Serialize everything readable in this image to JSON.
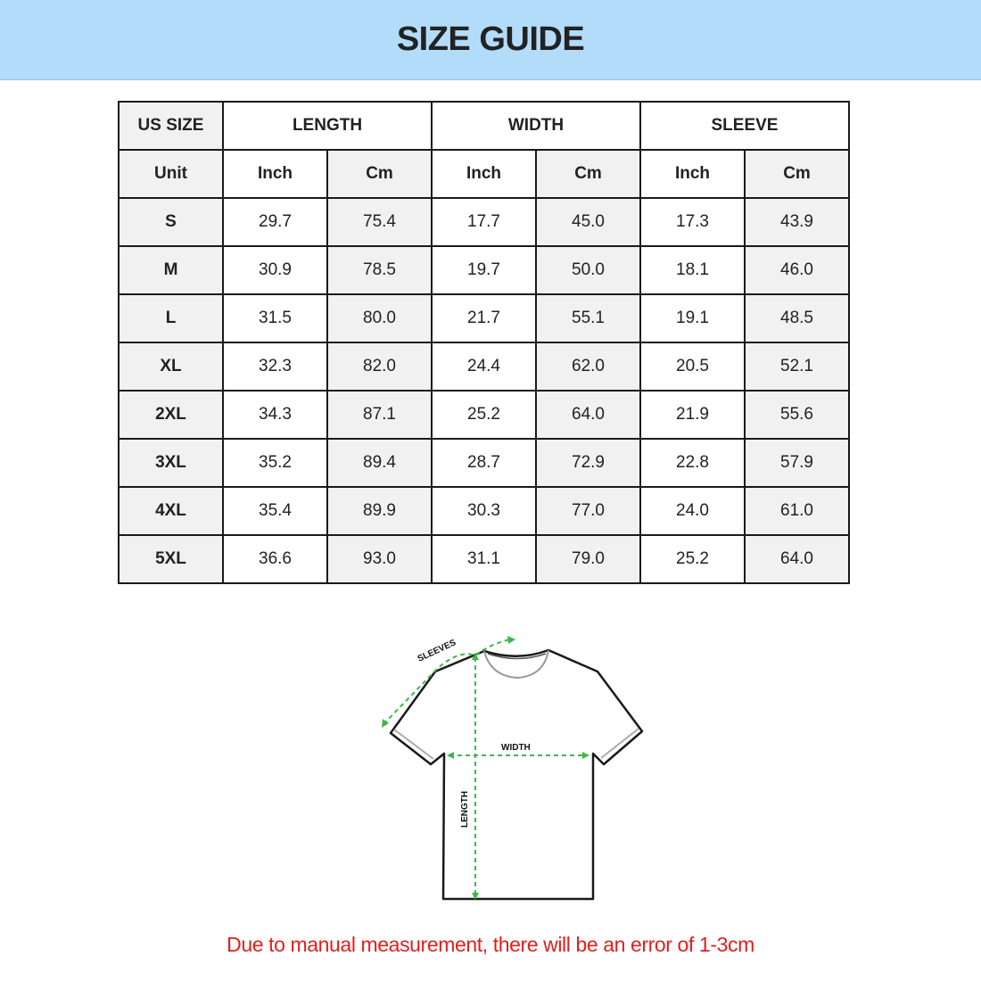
{
  "title": "SIZE GUIDE",
  "table": {
    "group_headers": [
      "US SIZE",
      "LENGTH",
      "WIDTH",
      "SLEEVE"
    ],
    "unit_row": [
      "Unit",
      "Inch",
      "Cm",
      "Inch",
      "Cm",
      "Inch",
      "Cm"
    ],
    "rows": [
      [
        "S",
        "29.7",
        "75.4",
        "17.7",
        "45.0",
        "17.3",
        "43.9"
      ],
      [
        "M",
        "30.9",
        "78.5",
        "19.7",
        "50.0",
        "18.1",
        "46.0"
      ],
      [
        "L",
        "31.5",
        "80.0",
        "21.7",
        "55.1",
        "19.1",
        "48.5"
      ],
      [
        "XL",
        "32.3",
        "82.0",
        "24.4",
        "62.0",
        "20.5",
        "52.1"
      ],
      [
        "2XL",
        "34.3",
        "87.1",
        "25.2",
        "64.0",
        "21.9",
        "55.6"
      ],
      [
        "3XL",
        "35.2",
        "89.4",
        "28.7",
        "72.9",
        "22.8",
        "57.9"
      ],
      [
        "4XL",
        "35.4",
        "89.9",
        "30.3",
        "77.0",
        "24.0",
        "61.0"
      ],
      [
        "5XL",
        "36.6",
        "93.0",
        "31.1",
        "79.0",
        "25.2",
        "64.0"
      ]
    ]
  },
  "diagram": {
    "sleeves_label": "SLEEVES",
    "width_label": "WIDTH",
    "length_label": "LENGTH",
    "arrow_color": "#3cb84a"
  },
  "note": "Due to manual measurement, there will be an error of 1-3cm",
  "colors": {
    "banner": "#b3dcfa",
    "note": "#e0201d"
  }
}
